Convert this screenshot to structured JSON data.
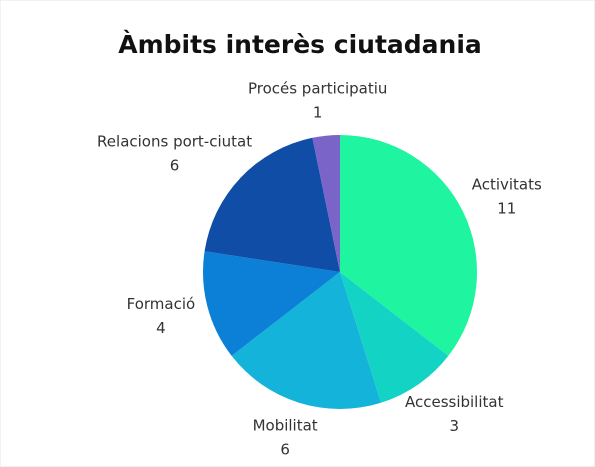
{
  "chart_data": {
    "type": "pie",
    "title": "Àmbits interès ciutadania",
    "categories": [
      "Activitats",
      "Accessibilitat",
      "Mobilitat",
      "Formació",
      "Relacions port-ciutat",
      "Procés participatiu"
    ],
    "values": [
      11,
      3,
      6,
      4,
      6,
      1
    ],
    "colors": [
      "#1ff5a0",
      "#13d4c4",
      "#14b3d9",
      "#0c80d6",
      "#0f4da6",
      "#7a64c8"
    ]
  }
}
